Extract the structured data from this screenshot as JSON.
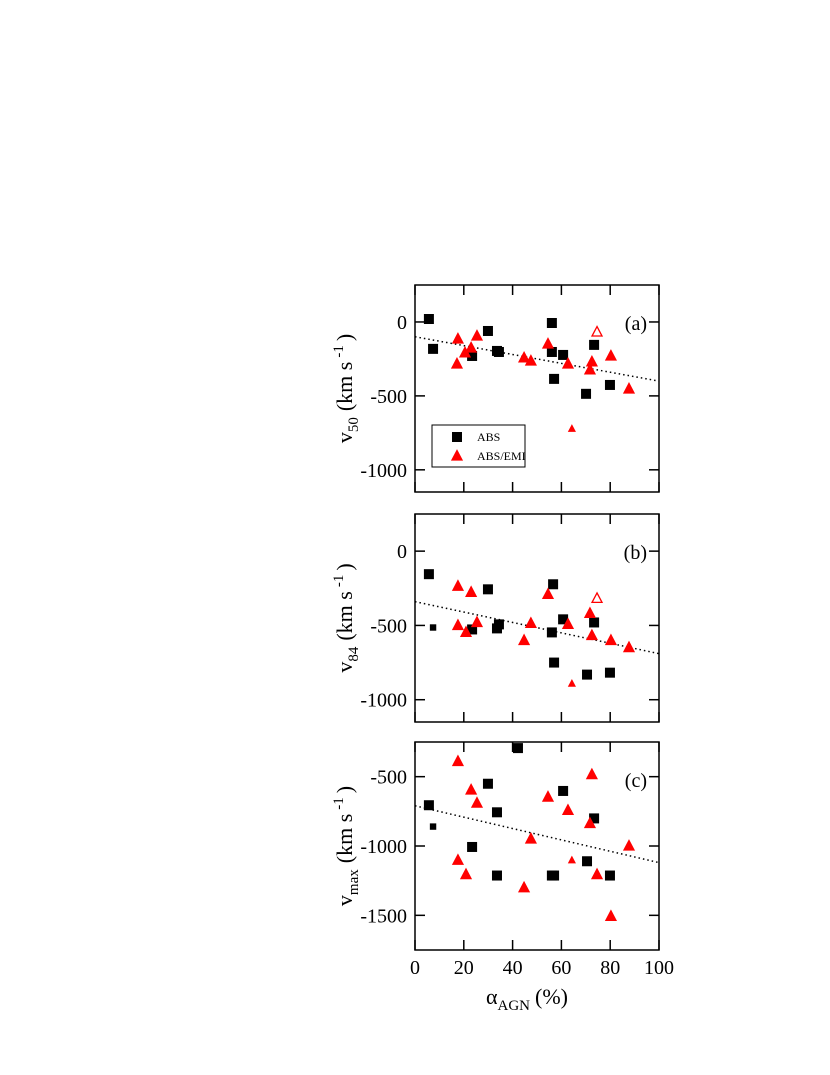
{
  "chart_data": [
    {
      "type": "scatter",
      "panel_label": "(a)",
      "ylabel": {
        "main": "v",
        "sub": "50",
        "unit": "(km s",
        "sup": "-1",
        "close": ")"
      },
      "xlim": [
        0,
        100
      ],
      "ylim": [
        -1150,
        250
      ],
      "xticks": [
        0,
        20,
        40,
        60,
        80,
        100
      ],
      "yticks": [
        -1000,
        -500,
        0
      ],
      "legend": "lower left",
      "series": [
        {
          "name": "ABS",
          "color": "#000000",
          "marker": "square",
          "x": [
            5.7,
            7.4,
            23.4,
            29.9,
            33.6,
            34.4,
            56.1,
            56.1,
            57.0,
            60.7,
            70.1,
            73.4,
            79.9
          ],
          "values": [
            20,
            -182,
            -230,
            -61,
            -196,
            -203,
            -7,
            -203,
            -385,
            -223,
            -486,
            -155,
            -426
          ]
        },
        {
          "name": "ABS/EMI",
          "color": "#ff0000",
          "marker": "triangle",
          "x": [
            17.6,
            17.2,
            20.5,
            23.0,
            25.4,
            44.7,
            47.5,
            54.5,
            62.7,
            71.7,
            72.5,
            80.3,
            87.7
          ],
          "values": [
            -115,
            -284,
            -209,
            -176,
            -95,
            -243,
            -264,
            -149,
            -284,
            -324,
            -270,
            -230,
            -453
          ]
        },
        {
          "color": "#ff0000",
          "marker": "triangle",
          "fill": "open",
          "x": [
            74.6
          ],
          "values": [
            -68
          ]
        },
        {
          "color": "#ff0000",
          "marker": "triangle",
          "size": "small",
          "x": [
            64.3
          ],
          "values": [
            -723
          ]
        }
      ],
      "fit": {
        "x": [
          0,
          100
        ],
        "values": [
          -100,
          -400
        ]
      }
    },
    {
      "type": "scatter",
      "panel_label": "(b)",
      "ylabel": {
        "main": "v",
        "sub": "84",
        "unit": "(km s",
        "sup": "-1",
        "close": ")"
      },
      "xlim": [
        0,
        100
      ],
      "ylim": [
        -1150,
        250
      ],
      "xticks": [
        0,
        20,
        40,
        60,
        80,
        100
      ],
      "yticks": [
        -1000,
        -500,
        0
      ],
      "series": [
        {
          "color": "#000000",
          "marker": "square",
          "x": [
            5.7,
            23.4,
            29.9,
            33.6,
            34.4,
            56.6,
            56.1,
            57.0,
            60.7,
            70.5,
            73.4,
            79.9
          ],
          "values": [
            -155,
            -527,
            -257,
            -520,
            -493,
            -223,
            -547,
            -750,
            -459,
            -831,
            -480,
            -818
          ]
        },
        {
          "color": "#000000",
          "marker": "square",
          "size": "small",
          "x": [
            7.4
          ],
          "values": [
            -514
          ]
        },
        {
          "color": "#ff0000",
          "marker": "triangle",
          "x": [
            17.6,
            17.6,
            20.9,
            23.0,
            25.4,
            44.7,
            47.5,
            54.5,
            62.7,
            71.7,
            72.5,
            80.3,
            87.7
          ],
          "values": [
            -236,
            -500,
            -547,
            -277,
            -480,
            -601,
            -486,
            -291,
            -493,
            -419,
            -568,
            -601,
            -649
          ]
        },
        {
          "color": "#ff0000",
          "marker": "triangle",
          "fill": "open",
          "x": [
            74.6
          ],
          "values": [
            -318
          ]
        },
        {
          "color": "#ff0000",
          "marker": "triangle",
          "size": "small",
          "x": [
            64.3
          ],
          "values": [
            -892
          ]
        }
      ],
      "fit": {
        "x": [
          0,
          100
        ],
        "values": [
          -340,
          -690
        ]
      }
    },
    {
      "type": "scatter",
      "panel_label": "(c)",
      "ylabel": {
        "main": "v",
        "sub": "max",
        "unit": "(km s",
        "sup": "-1",
        "close": ")"
      },
      "xlabel": {
        "main": "α",
        "sub": "AGN",
        "unit": "(%)"
      },
      "xlim": [
        0,
        100
      ],
      "ylim": [
        -1750,
        -250
      ],
      "xticks": [
        0,
        20,
        40,
        60,
        80,
        100
      ],
      "xtick_labels": true,
      "yticks": [
        -1500,
        -1000,
        -500
      ],
      "series": [
        {
          "color": "#000000",
          "marker": "square",
          "x": [
            5.7,
            23.4,
            29.9,
            33.6,
            33.6,
            42.2,
            56.1,
            57.0,
            60.7,
            70.5,
            73.4,
            79.9
          ],
          "values": [
            -706,
            -1007,
            -551,
            -757,
            -1213,
            -294,
            -1213,
            -1213,
            -603,
            -1110,
            -801,
            -1213
          ]
        },
        {
          "color": "#000000",
          "marker": "square",
          "size": "small",
          "x": [
            7.4
          ],
          "values": [
            -860
          ]
        },
        {
          "color": "#ff0000",
          "marker": "triangle",
          "x": [
            17.6,
            17.6,
            20.9,
            23.0,
            25.4,
            44.7,
            47.5,
            54.5,
            62.7,
            71.7,
            72.5,
            74.6,
            80.3,
            87.7
          ],
          "values": [
            -390,
            -1103,
            -1206,
            -596,
            -691,
            -1301,
            -949,
            -647,
            -743,
            -838,
            -485,
            -1206,
            -1507,
            -1000
          ]
        },
        {
          "color": "#ff0000",
          "marker": "triangle",
          "size": "small",
          "x": [
            64.3
          ],
          "values": [
            -1103
          ]
        }
      ],
      "fit": {
        "x": [
          0,
          100
        ],
        "values": [
          -710,
          -1120
        ]
      }
    }
  ]
}
